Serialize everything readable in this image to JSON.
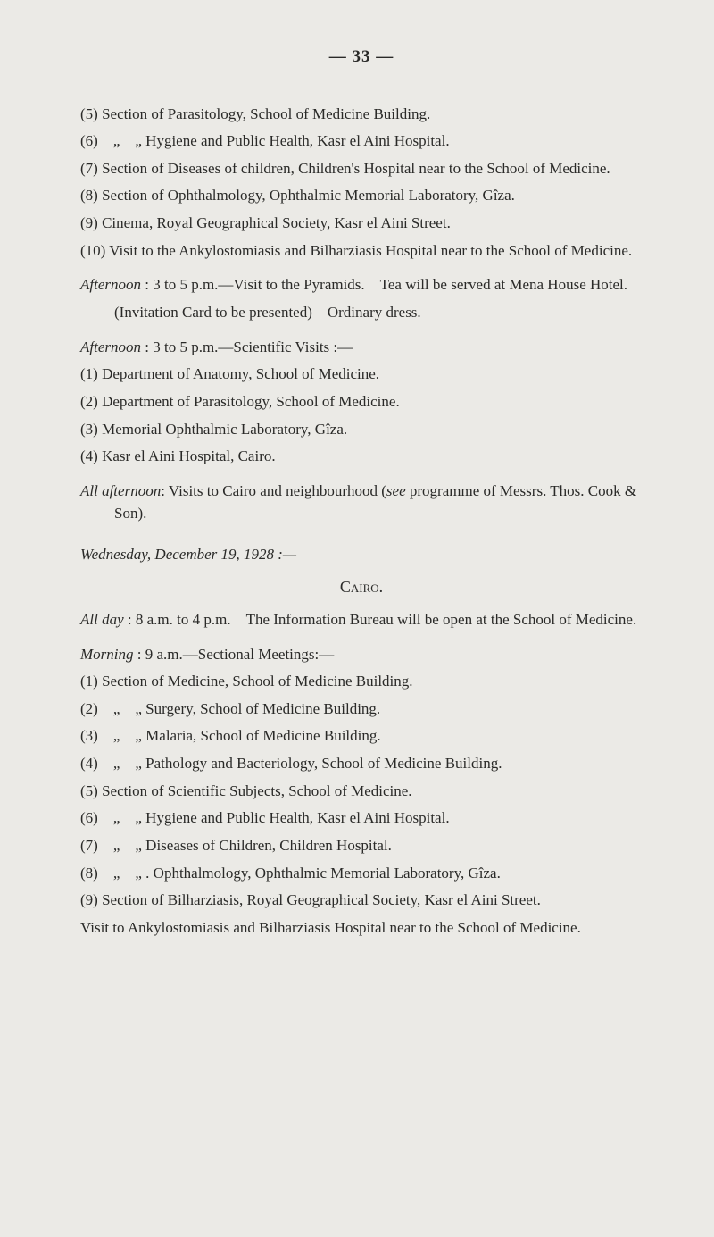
{
  "page_number": "— 33 —",
  "items_top": [
    "(5) Section of Parasitology, School of Medicine Building.",
    "(6) „ „ Hygiene and Public Health, Kasr el Aini Hospital.",
    "(7) Section of Diseases of children, Children's Hospital near to the School of Medicine.",
    "(8) Section of Ophthalmology, Ophthalmic Memorial Laboratory, Gîza.",
    "(9) Cinema, Royal Geographical Society, Kasr el Aini Street.",
    "(10) Visit to the Ankylostomiasis and Bilharziasis Hospital near to the School of Medicine."
  ],
  "afternoon1_head": "Afternoon : 3 to 5 p.m.—Visit to the Pyramids. Tea will be served at Mena House Hotel.",
  "afternoon1_invite": "(Invitation Card to be presented) Ordinary dress.",
  "afternoon2_head": "Afternoon : 3 to 5 p.m.—Scientific Visits :—",
  "afternoon2_items": [
    "(1) Department of Anatomy, School of Medicine.",
    "(2) Department of Parasitology, School of Medicine.",
    "(3) Memorial Ophthalmic Laboratory, Gîza.",
    "(4) Kasr el Aini Hospital, Cairo."
  ],
  "all_afternoon": "All afternoon: Visits to Cairo and neighbourhood (see programme of Messrs. Thos. Cook & Son).",
  "day_head": "Wednesday, December 19, 1928 :—",
  "city": "Cairo.",
  "all_day": "All day : 8 a.m. to 4 p.m. The Information Bureau will be open at the School of Medicine.",
  "morning_head": "Morning : 9 a.m.—Sectional Meetings:—",
  "morning_items": [
    "(1) Section of Medicine, School of Medicine Building.",
    "(2) „ „ Surgery, School of Medicine Building.",
    "(3) „ „ Malaria, School of Medicine Building.",
    "(4) „ „ Pathology and Bacteriology, School of Medicine Building.",
    "(5) Section of Scientific Subjects, School of Medicine.",
    "(6) „ „ Hygiene and Public Health, Kasr el Aini Hospital.",
    "(7) „ „ Diseases of Children, Children Hospital.",
    "(8) „ „ . Ophthalmology, Ophthalmic Memorial Laboratory, Gîza.",
    "(9) Section of Bilharziasis, Royal Geographical Society, Kasr el Aini Street."
  ],
  "visit_bottom": "Visit to Ankylostomiasis and Bilharziasis Hospital near to the School of Medicine."
}
